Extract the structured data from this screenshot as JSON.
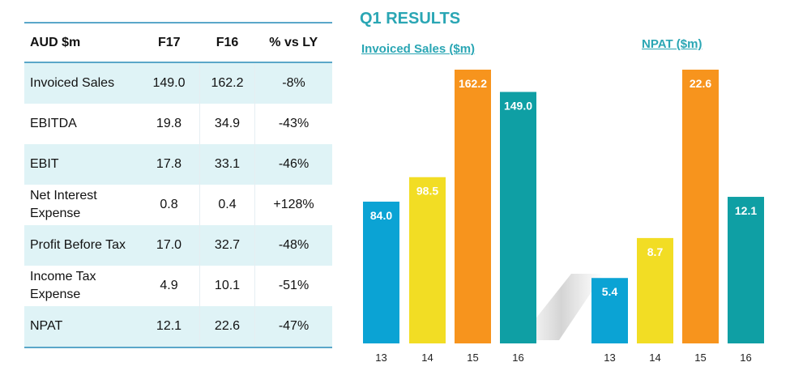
{
  "header": {
    "title": "Q1 RESULTS"
  },
  "table": {
    "columns": [
      "AUD $m",
      "F17",
      "F16",
      "% vs LY"
    ],
    "rows": [
      {
        "label": "Invoiced Sales",
        "f17": "149.0",
        "f16": "162.2",
        "pct": "-8%"
      },
      {
        "label": "EBITDA",
        "f17": "19.8",
        "f16": "34.9",
        "pct": "-43%"
      },
      {
        "label": "EBIT",
        "f17": "17.8",
        "f16": "33.1",
        "pct": "-46%"
      },
      {
        "label": "Net Interest Expense",
        "f17": "0.8",
        "f16": "0.4",
        "pct": "+128%"
      },
      {
        "label": "Profit Before Tax",
        "f17": "17.0",
        "f16": "32.7",
        "pct": "-48%"
      },
      {
        "label": "Income Tax Expense",
        "f17": "4.9",
        "f16": "10.1",
        "pct": "-51%"
      },
      {
        "label": "NPAT",
        "f17": "12.1",
        "f16": "22.6",
        "pct": "-47%"
      }
    ]
  },
  "colors": {
    "accent": "#2aa6b4",
    "table_shade": "#dff3f6",
    "table_rule": "#5aa7c9"
  },
  "chart_data": [
    {
      "type": "bar",
      "title": "Invoiced Sales ($m)",
      "categories": [
        "13",
        "14",
        "15",
        "16"
      ],
      "values": [
        84.0,
        98.5,
        162.2,
        149.0
      ],
      "labels": [
        "84.0",
        "98.5",
        "162.2",
        "149.0"
      ],
      "colors": [
        "#0ba3d4",
        "#f2dd24",
        "#f7941d",
        "#0f9fa4"
      ],
      "ylim": [
        0,
        162.2
      ],
      "grid": false
    },
    {
      "type": "bar",
      "title": "NPAT ($m)",
      "categories": [
        "13",
        "14",
        "15",
        "16"
      ],
      "values": [
        5.4,
        8.7,
        22.6,
        12.1
      ],
      "labels": [
        "5.4",
        "8.7",
        "22.6",
        "12.1"
      ],
      "colors": [
        "#0ba3d4",
        "#f2dd24",
        "#f7941d",
        "#0f9fa4"
      ],
      "ylim": [
        0,
        22.6
      ],
      "grid": false
    }
  ]
}
